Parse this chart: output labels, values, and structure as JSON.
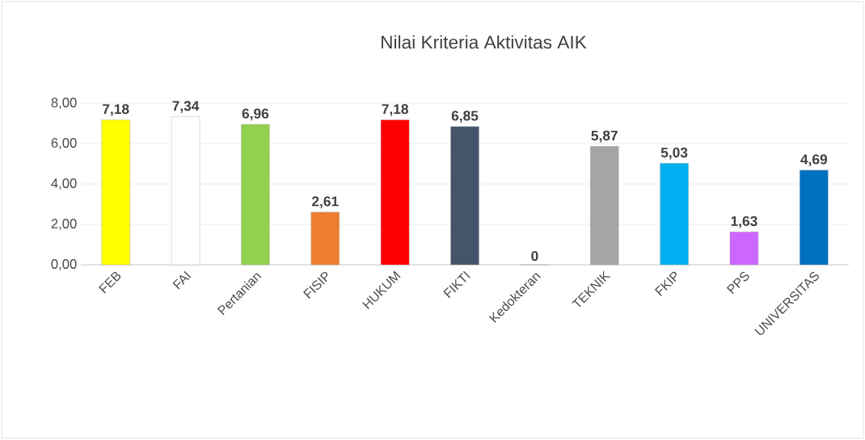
{
  "chart_data": {
    "type": "bar",
    "title": "Nilai Kriteria Aktivitas AIK",
    "categories": [
      "FEB",
      "FAI",
      "Pertanian",
      "FISIP",
      "HUKUM",
      "FIKTI",
      "Kedokteran",
      "TEKNIK",
      "FKIP",
      "PPS",
      "UNIVERSITAS"
    ],
    "values": [
      7.18,
      7.34,
      6.96,
      2.61,
      7.18,
      6.85,
      0,
      5.87,
      5.03,
      1.63,
      4.69
    ],
    "colors": [
      "#ffff00",
      "#ffffff",
      "#92d050",
      "#ed7d31",
      "#ff0000",
      "#44546a",
      "#808000",
      "#a5a5a5",
      "#00b0f0",
      "#cc66ff",
      "#0070c0"
    ],
    "value_labels": [
      "7,18",
      "7,34",
      "6,96",
      "2,61",
      "7,18",
      "6,85",
      "0",
      "5,87",
      "5,03",
      "1,63",
      "4,69"
    ],
    "ylim": [
      0,
      8
    ],
    "yticks": [
      {
        "value": 0,
        "label": "0,00"
      },
      {
        "value": 2,
        "label": "2,00"
      },
      {
        "value": 4,
        "label": "4,00"
      },
      {
        "value": 6,
        "label": "6,00"
      },
      {
        "value": 8,
        "label": "8,00"
      }
    ],
    "grid": "y"
  }
}
